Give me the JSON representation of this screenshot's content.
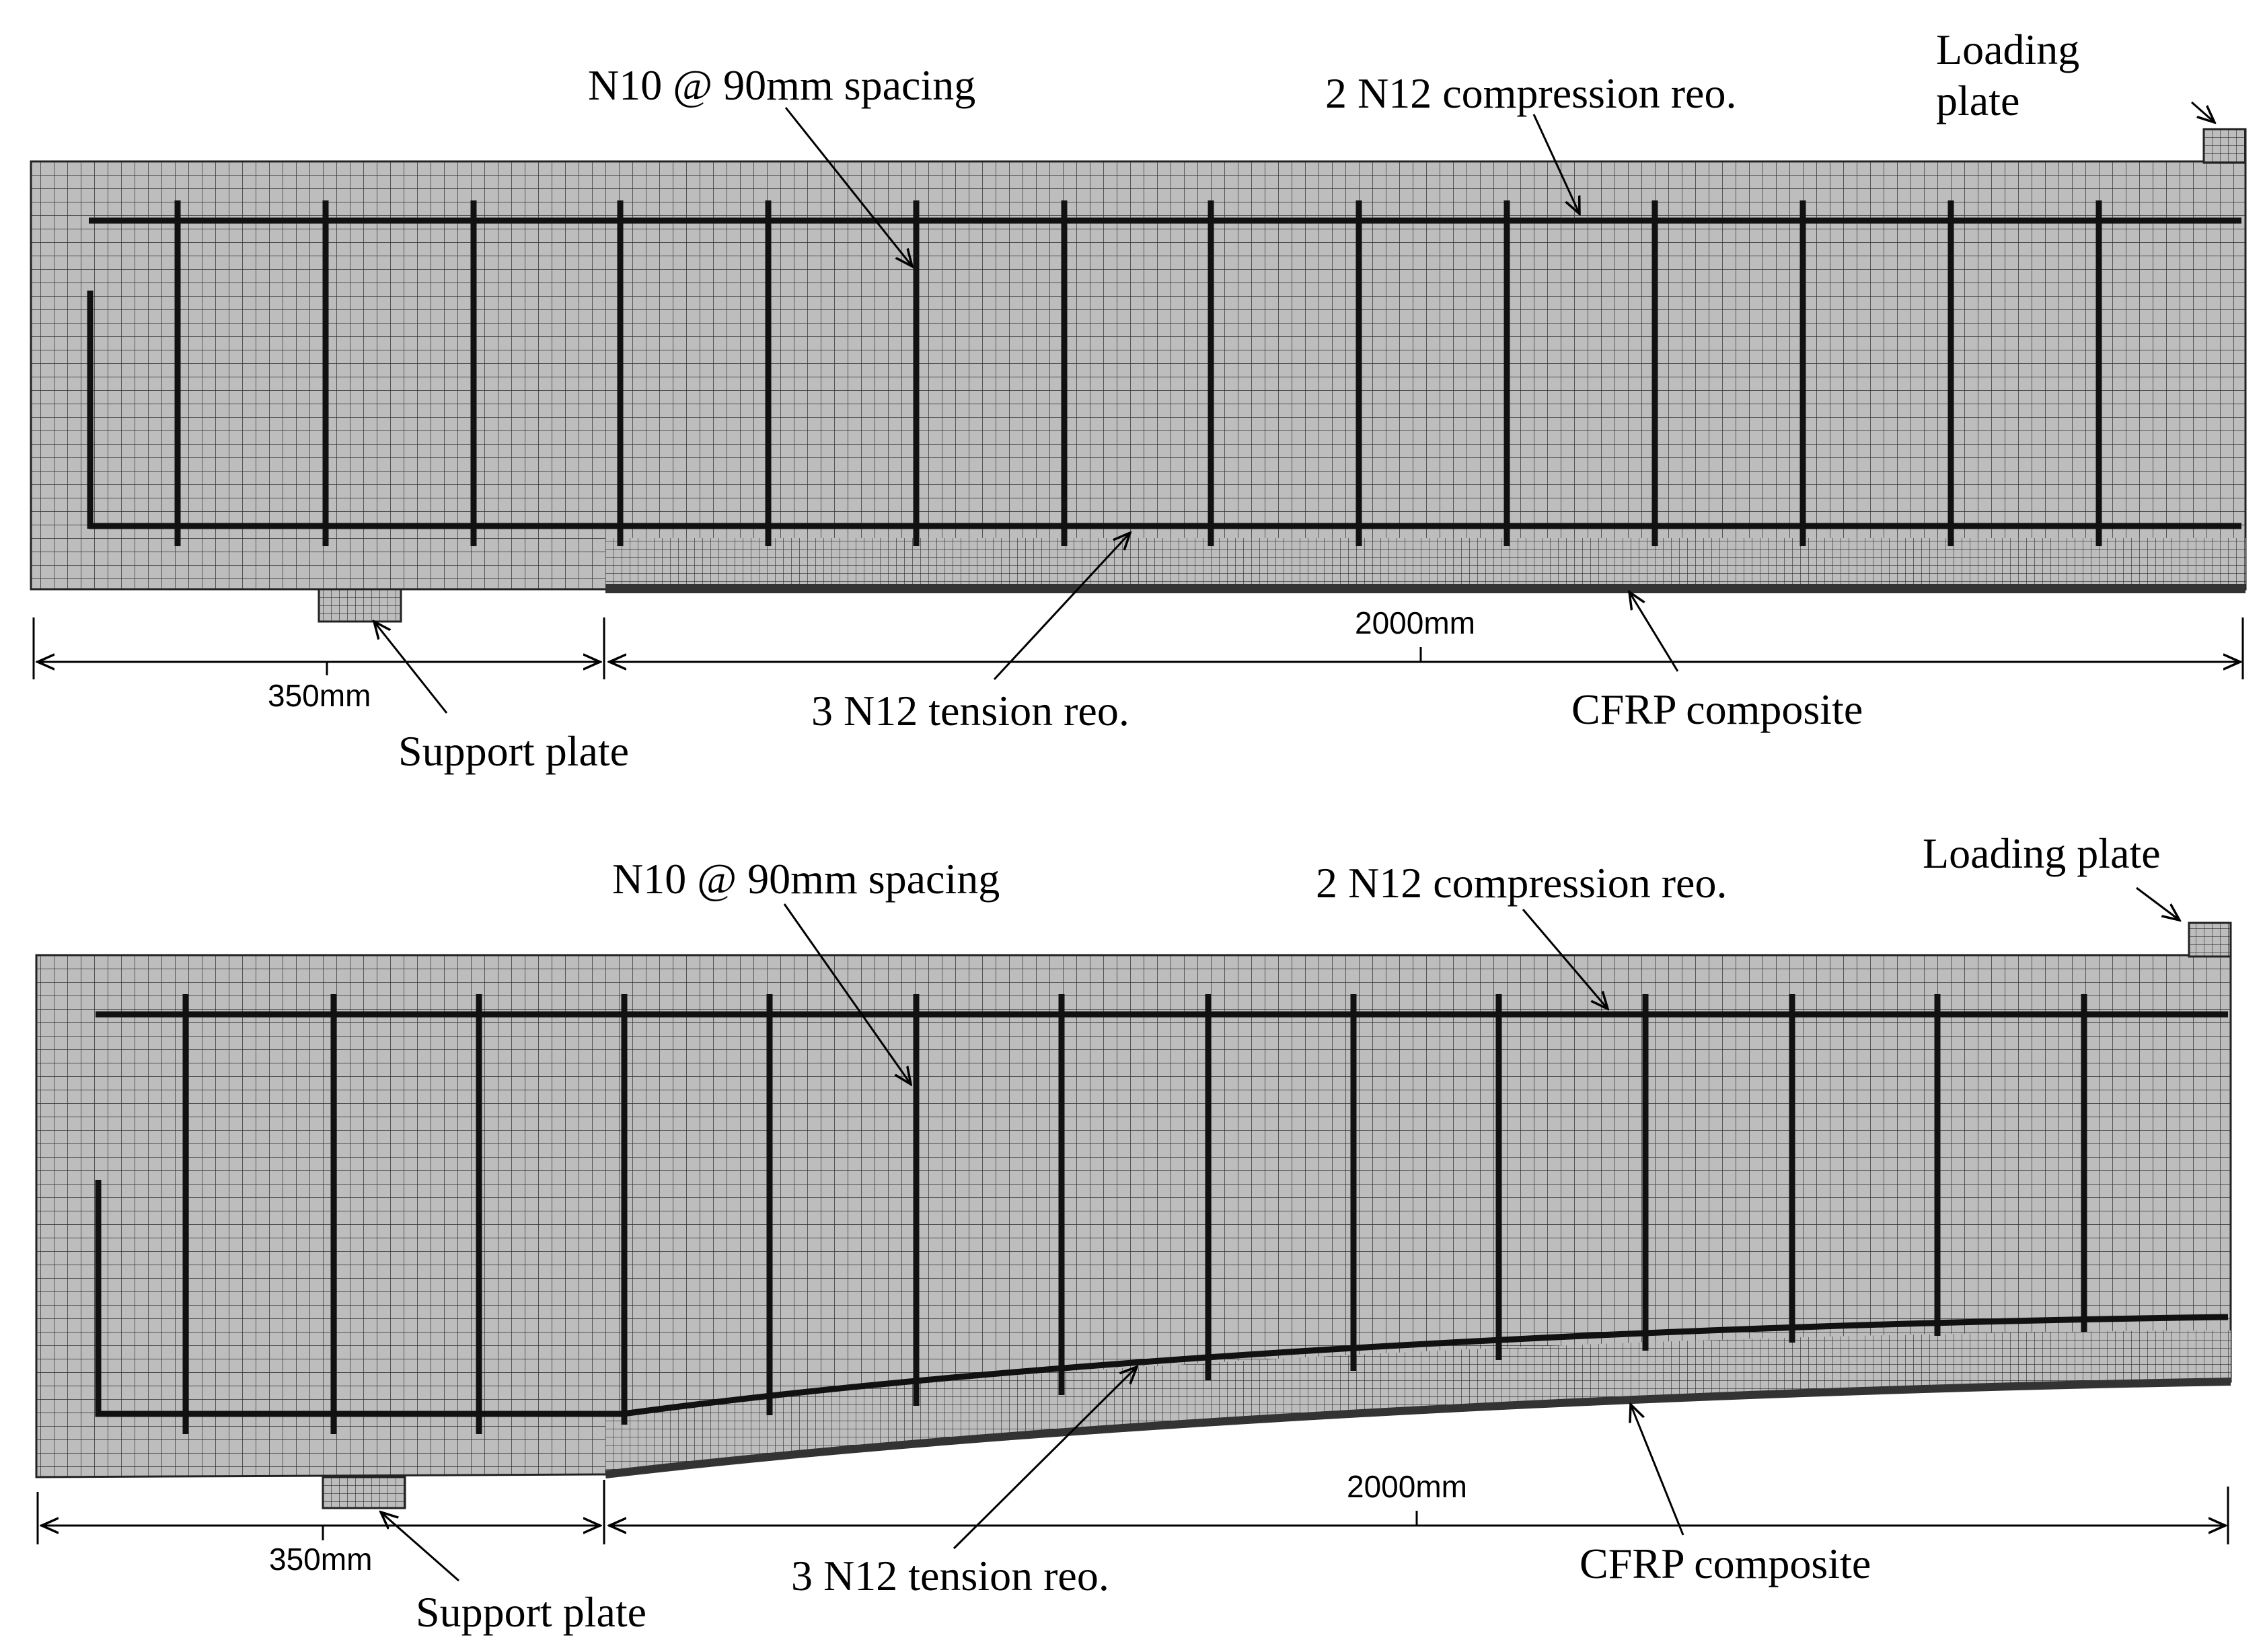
{
  "panels": [
    {
      "id": "top",
      "labels": {
        "stirrups": "N10 @ 90mm spacing",
        "compression": "2 N12 compression reo.",
        "loading": "Loading plate",
        "tension": "3 N12 tension reo.",
        "cfrp": "CFRP composite",
        "support": "Support plate",
        "dim_left": "350mm",
        "dim_right": "2000mm"
      }
    },
    {
      "id": "bottom",
      "labels": {
        "stirrups": "N10 @ 90mm spacing",
        "compression": "2 N12 compression reo.",
        "loading": "Loading plate",
        "tension": "3 N12 tension reo.",
        "cfrp": "CFRP composite",
        "support": "Support plate",
        "dim_left": "350mm",
        "dim_right": "2000mm"
      }
    }
  ],
  "colors": {
    "concrete": "#bdbdbd",
    "mesh": "#2a2a2a",
    "rebar": "#111111",
    "cfrp": "#333333"
  }
}
